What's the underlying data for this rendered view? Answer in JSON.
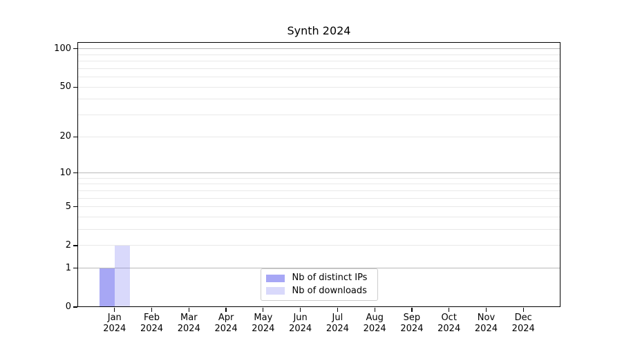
{
  "chart_data": {
    "type": "bar",
    "title": "Synth 2024",
    "month_line": [
      "Jan",
      "Feb",
      "Mar",
      "Apr",
      "May",
      "Jun",
      "Jul",
      "Aug",
      "Sep",
      "Oct",
      "Nov",
      "Dec"
    ],
    "year_line": [
      "2024",
      "2024",
      "2024",
      "2024",
      "2024",
      "2024",
      "2024",
      "2024",
      "2024",
      "2024",
      "2024",
      "2024"
    ],
    "series": [
      {
        "name": "Nb of distinct IPs",
        "color": "rgba(120,120,240,0.65)",
        "values": [
          1,
          0,
          0,
          0,
          0,
          0,
          0,
          0,
          0,
          0,
          0,
          0
        ]
      },
      {
        "name": "Nb of downloads",
        "color": "rgba(120,120,240,0.28)",
        "values": [
          2,
          0,
          0,
          0,
          0,
          0,
          0,
          0,
          0,
          0,
          0,
          0
        ]
      }
    ],
    "y_scale": "log1p",
    "ylim": [
      0,
      113
    ],
    "xlim": [
      -1,
      12
    ],
    "y_tick_labels": [
      0,
      1,
      2,
      5,
      10,
      20,
      50,
      100
    ],
    "y_major_gridlines": [
      1,
      10,
      100
    ],
    "y_minor_gridlines": [
      2,
      3,
      4,
      5,
      6,
      7,
      8,
      9,
      20,
      30,
      40,
      50,
      60,
      70,
      80,
      90
    ],
    "grid": true,
    "legend_position": "lower center",
    "colors": {
      "grid_major": "#b9b9b9",
      "grid_minor": "#e8e8e8",
      "spine": "#000000",
      "text": "#000000",
      "legend_border": "#cccccc",
      "background": "#ffffff"
    }
  }
}
